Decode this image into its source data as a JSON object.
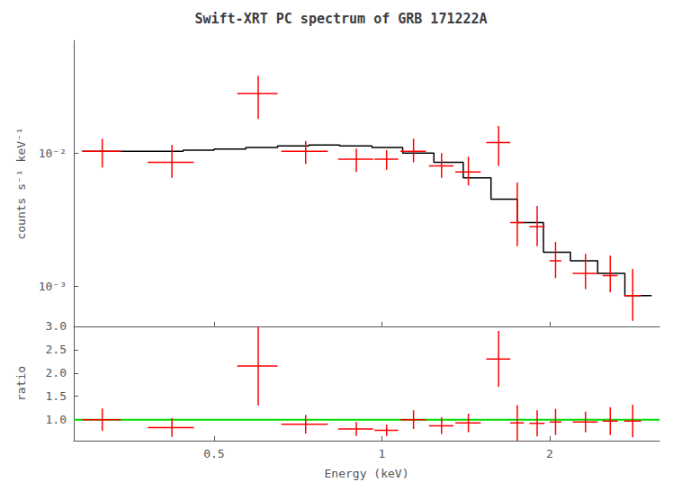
{
  "chart_data": [
    {
      "type": "line",
      "title": "Swift-XRT PC spectrum of GRB 171222A",
      "ylabel": "counts s⁻¹ keV⁻¹",
      "log": true,
      "grid": false,
      "tick_labels": "y",
      "xlim": [
        0.28,
        3.15
      ],
      "xticks": [
        0.5,
        1.0,
        2.0
      ],
      "ylim": [
        0.0005,
        0.07
      ],
      "yticks": [
        {
          "value": 0.001,
          "label": "10⁻³"
        },
        {
          "value": 0.01,
          "label": "10⁻²"
        }
      ],
      "series": [
        {
          "type": "line",
          "line_style": "step",
          "color": "#000000",
          "bins": [
            0.29,
            0.34,
            0.39,
            0.44,
            0.5,
            0.57,
            0.65,
            0.74,
            0.84,
            0.96,
            1.09,
            1.24,
            1.4,
            1.57,
            1.75,
            1.95,
            2.18,
            2.44,
            2.73,
            3.05
          ],
          "values": [
            0.0103,
            0.0103,
            0.0103,
            0.0105,
            0.0107,
            0.011,
            0.0113,
            0.0115,
            0.0113,
            0.011,
            0.01,
            0.0085,
            0.0065,
            0.0045,
            0.003,
            0.0018,
            0.00155,
            0.00125,
            0.00085
          ]
        },
        {
          "type": "scatter",
          "color": "#ff0000",
          "x": [
            0.315,
            0.42,
            0.6,
            0.73,
            0.9,
            1.02,
            1.14,
            1.28,
            1.43,
            1.62,
            1.75,
            1.9,
            2.05,
            2.32,
            2.57,
            2.82
          ],
          "values": [
            0.0103,
            0.0085,
            0.028,
            0.0103,
            0.009,
            0.009,
            0.0103,
            0.008,
            0.0072,
            0.012,
            0.003,
            0.0028,
            0.00155,
            0.00125,
            0.0012,
            0.00085
          ],
          "xerr_lo": [
            0.025,
            0.04,
            0.05,
            0.07,
            0.065,
            0.05,
            0.06,
            0.065,
            0.075,
            0.08,
            0.05,
            0.06,
            0.05,
            0.12,
            0.08,
            0.1
          ],
          "xerr_hi": [
            0.025,
            0.04,
            0.05,
            0.07,
            0.065,
            0.05,
            0.06,
            0.065,
            0.075,
            0.08,
            0.05,
            0.06,
            0.05,
            0.12,
            0.08,
            0.1
          ],
          "yerr_lo": [
            0.0025,
            0.002,
            0.01,
            0.002,
            0.0018,
            0.0015,
            0.0018,
            0.0015,
            0.0015,
            0.004,
            0.001,
            0.0008,
            0.0004,
            0.0003,
            0.0003,
            0.0003
          ],
          "yerr_hi": [
            0.0025,
            0.003,
            0.01,
            0.002,
            0.0018,
            0.0015,
            0.0025,
            0.002,
            0.0022,
            0.004,
            0.003,
            0.0012,
            0.0006,
            0.0005,
            0.0005,
            0.0005
          ]
        }
      ]
    },
    {
      "type": "scatter",
      "xlabel": "Energy (keV)",
      "ylabel": "ratio",
      "log": "x",
      "grid": false,
      "xlim": [
        0.28,
        3.15
      ],
      "xticks": [
        0.5,
        1,
        2
      ],
      "ylim": [
        0.55,
        3.0
      ],
      "yticks": [
        {
          "value": 1.0,
          "label": "1.0"
        },
        {
          "value": 1.5,
          "label": "1.5"
        },
        {
          "value": 2.0,
          "label": "2.0"
        },
        {
          "value": 2.5,
          "label": "2.5"
        },
        {
          "value": 3.0,
          "label": "3.0"
        }
      ],
      "series": [
        {
          "type": "hline",
          "color": "#00dd00",
          "values": [
            1.0
          ]
        },
        {
          "type": "scatter",
          "color": "#ff0000",
          "x": [
            0.315,
            0.42,
            0.6,
            0.73,
            0.9,
            1.02,
            1.14,
            1.28,
            1.43,
            1.62,
            1.75,
            1.9,
            2.05,
            2.32,
            2.57,
            2.82
          ],
          "values": [
            1.0,
            0.83,
            2.15,
            0.9,
            0.8,
            0.77,
            1.0,
            0.87,
            0.93,
            2.3,
            0.93,
            0.92,
            0.95,
            0.95,
            0.97,
            0.97
          ],
          "xerr_lo": [
            0.025,
            0.04,
            0.05,
            0.07,
            0.065,
            0.05,
            0.06,
            0.065,
            0.075,
            0.08,
            0.05,
            0.06,
            0.05,
            0.12,
            0.08,
            0.1
          ],
          "xerr_hi": [
            0.025,
            0.04,
            0.05,
            0.07,
            0.065,
            0.05,
            0.06,
            0.065,
            0.075,
            0.08,
            0.05,
            0.06,
            0.05,
            0.12,
            0.08,
            0.1
          ],
          "yerr_lo": [
            0.24,
            0.2,
            0.85,
            0.2,
            0.15,
            0.12,
            0.2,
            0.18,
            0.2,
            0.6,
            0.38,
            0.28,
            0.28,
            0.22,
            0.3,
            0.35
          ],
          "yerr_hi": [
            0.24,
            0.2,
            0.85,
            0.2,
            0.15,
            0.12,
            0.2,
            0.18,
            0.2,
            0.6,
            0.38,
            0.28,
            0.28,
            0.22,
            0.3,
            0.35
          ]
        }
      ]
    }
  ]
}
